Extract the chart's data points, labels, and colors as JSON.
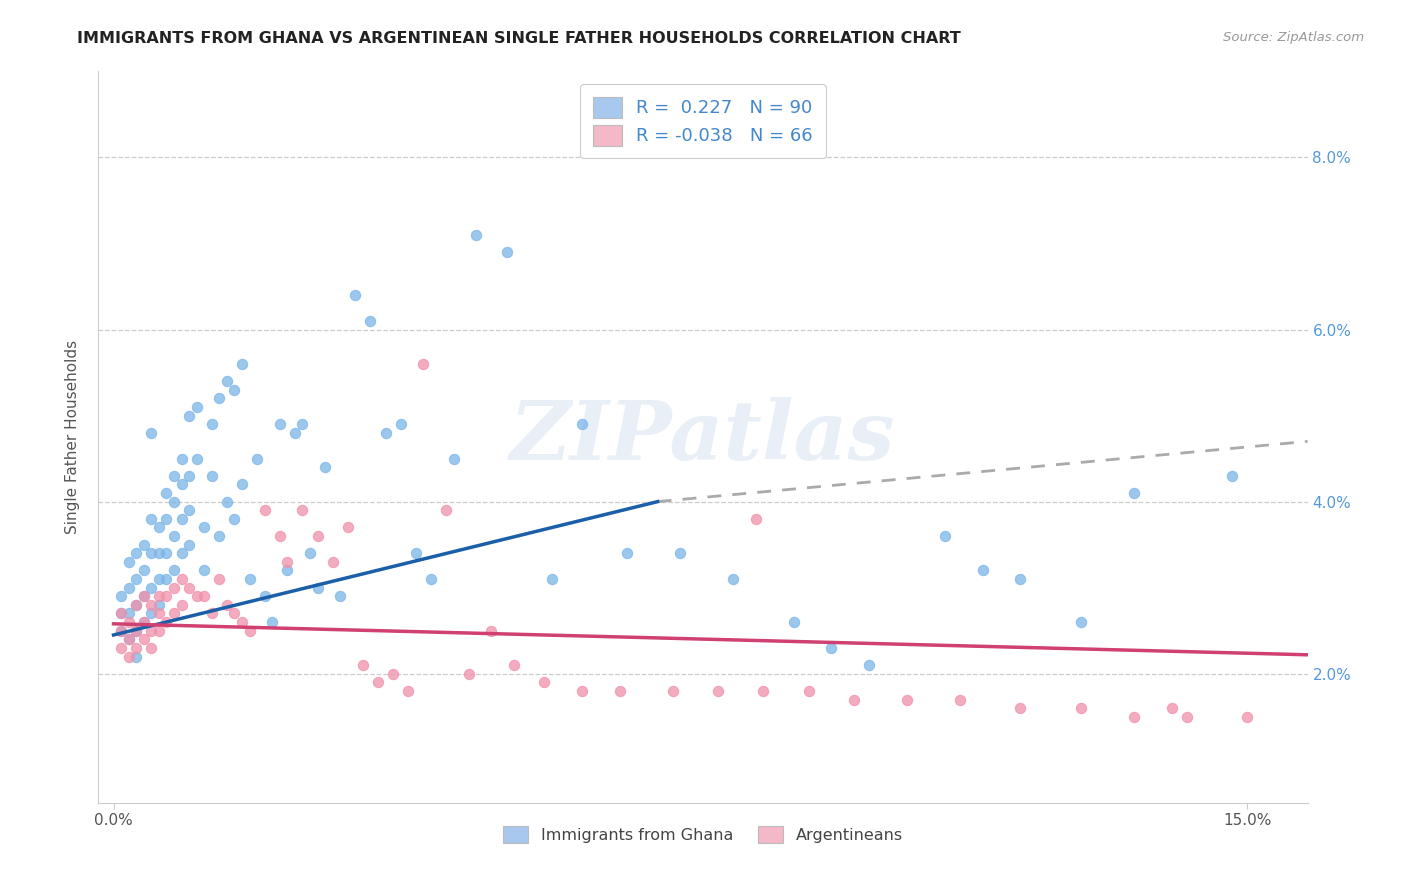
{
  "title": "IMMIGRANTS FROM GHANA VS ARGENTINEAN SINGLE FATHER HOUSEHOLDS CORRELATION CHART",
  "source": "Source: ZipAtlas.com",
  "ylabel": "Single Father Households",
  "ytick_vals": [
    0.02,
    0.04,
    0.06,
    0.08
  ],
  "ytick_labels": [
    "2.0%",
    "4.0%",
    "6.0%",
    "8.0%"
  ],
  "xtick_vals": [
    0.0,
    0.15
  ],
  "xtick_labels": [
    "0.0%",
    "15.0%"
  ],
  "ylim": [
    0.005,
    0.09
  ],
  "xlim": [
    -0.002,
    0.158
  ],
  "legend_labels_top": [
    "R =  0.227   N = 90",
    "R = -0.038   N = 66"
  ],
  "legend_labels_bottom": [
    "Immigrants from Ghana",
    "Argentineans"
  ],
  "watermark": "ZIPatlas",
  "blue_scatter": "#7ab5e8",
  "pink_scatter": "#f090aa",
  "trend_blue": "#1a5fa8",
  "trend_pink": "#d04070",
  "trend_gray": "#aaaaaa",
  "legend_blue": "#a8c8f0",
  "legend_pink": "#f4b8c8",
  "background": "#ffffff",
  "grid_color": "#cccccc",
  "ylabel_color": "#555555",
  "ytick_color": "#5599dd",
  "xtick_color": "#555555",
  "title_color": "#222222",
  "source_color": "#999999",
  "blue_x": [
    0.001,
    0.001,
    0.001,
    0.002,
    0.002,
    0.002,
    0.002,
    0.003,
    0.003,
    0.003,
    0.003,
    0.003,
    0.004,
    0.004,
    0.004,
    0.004,
    0.005,
    0.005,
    0.005,
    0.005,
    0.005,
    0.006,
    0.006,
    0.006,
    0.006,
    0.007,
    0.007,
    0.007,
    0.007,
    0.008,
    0.008,
    0.008,
    0.008,
    0.009,
    0.009,
    0.009,
    0.009,
    0.01,
    0.01,
    0.01,
    0.01,
    0.011,
    0.011,
    0.012,
    0.012,
    0.013,
    0.013,
    0.014,
    0.014,
    0.015,
    0.015,
    0.016,
    0.016,
    0.017,
    0.017,
    0.018,
    0.019,
    0.02,
    0.021,
    0.022,
    0.023,
    0.024,
    0.025,
    0.026,
    0.027,
    0.028,
    0.03,
    0.032,
    0.034,
    0.036,
    0.038,
    0.04,
    0.042,
    0.045,
    0.048,
    0.052,
    0.058,
    0.062,
    0.068,
    0.075,
    0.082,
    0.09,
    0.095,
    0.1,
    0.11,
    0.115,
    0.12,
    0.128,
    0.135,
    0.148
  ],
  "blue_y": [
    0.027,
    0.029,
    0.025,
    0.033,
    0.03,
    0.027,
    0.024,
    0.034,
    0.031,
    0.028,
    0.025,
    0.022,
    0.035,
    0.032,
    0.029,
    0.026,
    0.048,
    0.038,
    0.034,
    0.03,
    0.027,
    0.037,
    0.034,
    0.031,
    0.028,
    0.041,
    0.038,
    0.034,
    0.031,
    0.043,
    0.04,
    0.036,
    0.032,
    0.045,
    0.042,
    0.038,
    0.034,
    0.05,
    0.043,
    0.039,
    0.035,
    0.051,
    0.045,
    0.037,
    0.032,
    0.049,
    0.043,
    0.052,
    0.036,
    0.054,
    0.04,
    0.053,
    0.038,
    0.056,
    0.042,
    0.031,
    0.045,
    0.029,
    0.026,
    0.049,
    0.032,
    0.048,
    0.049,
    0.034,
    0.03,
    0.044,
    0.029,
    0.064,
    0.061,
    0.048,
    0.049,
    0.034,
    0.031,
    0.045,
    0.071,
    0.069,
    0.031,
    0.049,
    0.034,
    0.034,
    0.031,
    0.026,
    0.023,
    0.021,
    0.036,
    0.032,
    0.031,
    0.026,
    0.041,
    0.043
  ],
  "pink_x": [
    0.001,
    0.001,
    0.001,
    0.002,
    0.002,
    0.002,
    0.003,
    0.003,
    0.003,
    0.004,
    0.004,
    0.004,
    0.005,
    0.005,
    0.005,
    0.006,
    0.006,
    0.006,
    0.007,
    0.007,
    0.008,
    0.008,
    0.009,
    0.009,
    0.01,
    0.011,
    0.012,
    0.013,
    0.014,
    0.015,
    0.016,
    0.017,
    0.018,
    0.02,
    0.022,
    0.023,
    0.025,
    0.027,
    0.029,
    0.031,
    0.033,
    0.035,
    0.037,
    0.039,
    0.041,
    0.044,
    0.047,
    0.05,
    0.053,
    0.057,
    0.062,
    0.067,
    0.074,
    0.08,
    0.086,
    0.092,
    0.098,
    0.105,
    0.112,
    0.12,
    0.128,
    0.135,
    0.142,
    0.15,
    0.085,
    0.14
  ],
  "pink_y": [
    0.027,
    0.025,
    0.023,
    0.026,
    0.024,
    0.022,
    0.028,
    0.025,
    0.023,
    0.029,
    0.026,
    0.024,
    0.028,
    0.025,
    0.023,
    0.029,
    0.027,
    0.025,
    0.029,
    0.026,
    0.03,
    0.027,
    0.031,
    0.028,
    0.03,
    0.029,
    0.029,
    0.027,
    0.031,
    0.028,
    0.027,
    0.026,
    0.025,
    0.039,
    0.036,
    0.033,
    0.039,
    0.036,
    0.033,
    0.037,
    0.021,
    0.019,
    0.02,
    0.018,
    0.056,
    0.039,
    0.02,
    0.025,
    0.021,
    0.019,
    0.018,
    0.018,
    0.018,
    0.018,
    0.018,
    0.018,
    0.017,
    0.017,
    0.017,
    0.016,
    0.016,
    0.015,
    0.015,
    0.015,
    0.038,
    0.016
  ],
  "blue_trend_x0": 0.0,
  "blue_trend_y0": 0.0245,
  "blue_trend_x1": 0.072,
  "blue_trend_y1": 0.04,
  "blue_trend_dash_x0": 0.072,
  "blue_trend_dash_y0": 0.04,
  "blue_trend_dash_x1": 0.158,
  "blue_trend_dash_y1": 0.047,
  "pink_trend_x0": 0.0,
  "pink_trend_y0": 0.0258,
  "pink_trend_x1": 0.158,
  "pink_trend_y1": 0.0222
}
